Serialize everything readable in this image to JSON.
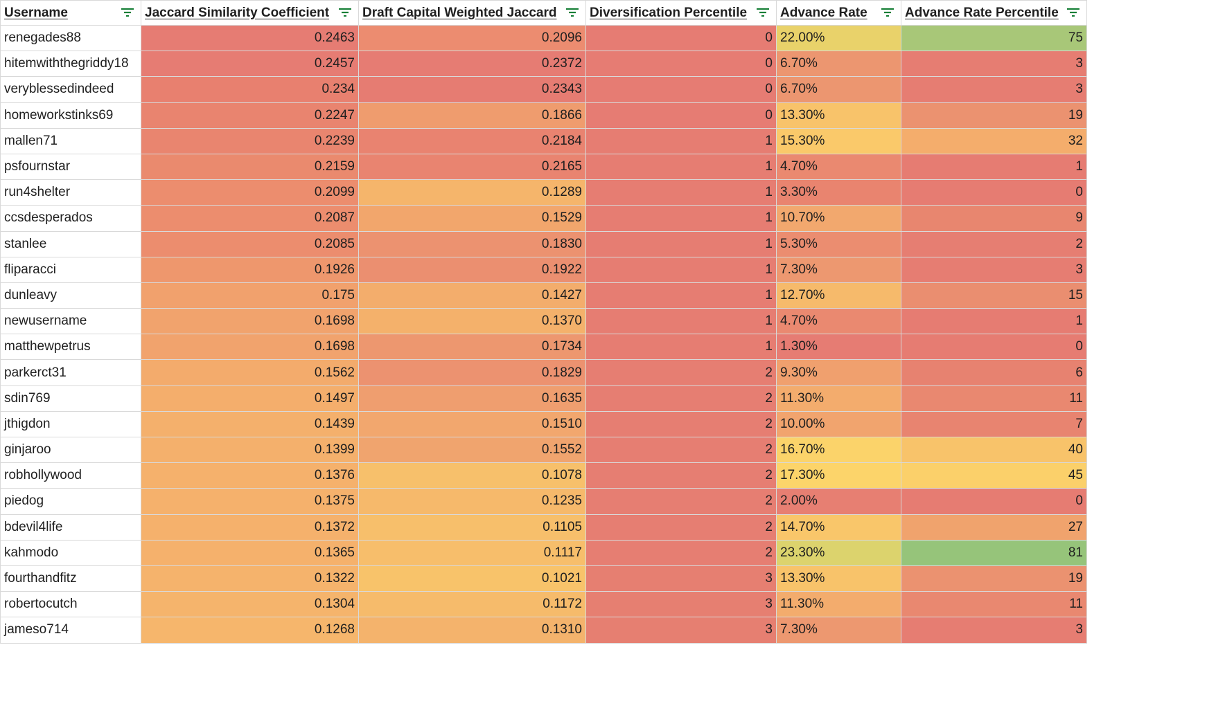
{
  "headers": [
    {
      "label": "Username"
    },
    {
      "label": "Jaccard Similarity Coefficient"
    },
    {
      "label": "Draft Capital Weighted Jaccard"
    },
    {
      "label": "Diversification Percentile"
    },
    {
      "label": "Advance Rate"
    },
    {
      "label": "Advance Rate Percentile"
    }
  ],
  "filter_icon": {
    "name": "filter-icon",
    "color": "#188038"
  },
  "rows": [
    {
      "username": "renegades88",
      "jaccard": "0.2463",
      "weighted": "0.2096",
      "div_pct": "0",
      "adv_rate": "22.00%",
      "adv_pct": "75",
      "colors": [
        "#e67c73",
        "#ec8c70",
        "#e67c73",
        "#e9d26a",
        "#a8c778"
      ]
    },
    {
      "username": "hitemwiththegriddy18",
      "jaccard": "0.2457",
      "weighted": "0.2372",
      "div_pct": "0",
      "adv_rate": "6.70%",
      "adv_pct": "3",
      "colors": [
        "#e67c73",
        "#e67c73",
        "#e67c73",
        "#ec9670",
        "#e67d72"
      ]
    },
    {
      "username": "veryblessedindeed",
      "jaccard": "0.234",
      "weighted": "0.2343",
      "div_pct": "0",
      "adv_rate": "6.70%",
      "adv_pct": "3",
      "colors": [
        "#e8806f",
        "#e67c72",
        "#e67c73",
        "#ec9670",
        "#e67d72"
      ]
    },
    {
      "username": "homeworkstinks69",
      "jaccard": "0.2247",
      "weighted": "0.1866",
      "div_pct": "0",
      "adv_rate": "13.30%",
      "adv_pct": "19",
      "colors": [
        "#e9846f",
        "#ef9c6e",
        "#e67c73",
        "#f8c36a",
        "#eb9270"
      ]
    },
    {
      "username": "mallen71",
      "jaccard": "0.2239",
      "weighted": "0.2184",
      "div_pct": "1",
      "adv_rate": "15.30%",
      "adv_pct": "32",
      "colors": [
        "#e9856f",
        "#e98370",
        "#e67d72",
        "#fac96a",
        "#f4ad6c"
      ]
    },
    {
      "username": "psfournstar",
      "jaccard": "0.2159",
      "weighted": "0.2165",
      "div_pct": "1",
      "adv_rate": "4.70%",
      "adv_pct": "1",
      "colors": [
        "#ea8a6e",
        "#e98470",
        "#e67d72",
        "#ea8970",
        "#e67c72"
      ]
    },
    {
      "username": "run4shelter",
      "jaccard": "0.2099",
      "weighted": "0.1289",
      "div_pct": "1",
      "adv_rate": "3.30%",
      "adv_pct": "0",
      "colors": [
        "#ec8d6e",
        "#f5b56b",
        "#e67d72",
        "#e9846f",
        "#e67c72"
      ]
    },
    {
      "username": "ccsdesperados",
      "jaccard": "0.2087",
      "weighted": "0.1529",
      "div_pct": "1",
      "adv_rate": "10.70%",
      "adv_pct": "9",
      "colors": [
        "#ec8d6e",
        "#f2a66c",
        "#e67d72",
        "#f2a86e",
        "#e8866f"
      ]
    },
    {
      "username": "stanlee",
      "jaccard": "0.2085",
      "weighted": "0.1830",
      "div_pct": "1",
      "adv_rate": "5.30%",
      "adv_pct": "2",
      "colors": [
        "#ec8d6e",
        "#ec9270",
        "#e67d72",
        "#eb8d70",
        "#e67e72"
      ]
    },
    {
      "username": "fliparacci",
      "jaccard": "0.1926",
      "weighted": "0.1922",
      "div_pct": "1",
      "adv_rate": "7.30%",
      "adv_pct": "3",
      "colors": [
        "#ee976d",
        "#eb8f70",
        "#e67d72",
        "#ed9870",
        "#e67d72"
      ]
    },
    {
      "username": "dunleavy",
      "jaccard": "0.175",
      "weighted": "0.1427",
      "div_pct": "1",
      "adv_rate": "12.70%",
      "adv_pct": "15",
      "colors": [
        "#f1a16d",
        "#f3ad6c",
        "#e67d72",
        "#f6ba6b",
        "#ea8e70"
      ]
    },
    {
      "username": "newusername",
      "jaccard": "0.1698",
      "weighted": "0.1370",
      "div_pct": "1",
      "adv_rate": "4.70%",
      "adv_pct": "1",
      "colors": [
        "#f1a36d",
        "#f4b16b",
        "#e67d72",
        "#ea8970",
        "#e67c72"
      ]
    },
    {
      "username": "matthewpetrus",
      "jaccard": "0.1698",
      "weighted": "0.1734",
      "div_pct": "1",
      "adv_rate": "1.30%",
      "adv_pct": "0",
      "colors": [
        "#f1a36d",
        "#ed976f",
        "#e67d72",
        "#e67c73",
        "#e67c72"
      ]
    },
    {
      "username": "parkerct31",
      "jaccard": "0.1562",
      "weighted": "0.1829",
      "div_pct": "2",
      "adv_rate": "9.30%",
      "adv_pct": "6",
      "colors": [
        "#f3ab6c",
        "#ec9270",
        "#e67e72",
        "#f0a06e",
        "#e78270"
      ]
    },
    {
      "username": "sdin769",
      "jaccard": "0.1497",
      "weighted": "0.1635",
      "div_pct": "2",
      "adv_rate": "11.30%",
      "adv_pct": "11",
      "colors": [
        "#f4ae6c",
        "#ef9e6f",
        "#e67e72",
        "#f3ac6d",
        "#e98870"
      ]
    },
    {
      "username": "jthigdon",
      "jaccard": "0.1439",
      "weighted": "0.1510",
      "div_pct": "2",
      "adv_rate": "10.00%",
      "adv_pct": "7",
      "colors": [
        "#f4b06c",
        "#f2a76e",
        "#e67e72",
        "#f1a46e",
        "#e88470"
      ]
    },
    {
      "username": "ginjaroo",
      "jaccard": "0.1399",
      "weighted": "0.1552",
      "div_pct": "2",
      "adv_rate": "16.70%",
      "adv_pct": "40",
      "colors": [
        "#f4b06c",
        "#f0a46e",
        "#e67e72",
        "#fbd36a",
        "#f8c36a"
      ]
    },
    {
      "username": "robhollywood",
      "jaccard": "0.1376",
      "weighted": "0.1078",
      "div_pct": "2",
      "adv_rate": "17.30%",
      "adv_pct": "45",
      "colors": [
        "#f5b16c",
        "#f7c06b",
        "#e67e72",
        "#fcd46a",
        "#fbd06a"
      ]
    },
    {
      "username": "piedog",
      "jaccard": "0.1375",
      "weighted": "0.1235",
      "div_pct": "2",
      "adv_rate": "2.00%",
      "adv_pct": "0",
      "colors": [
        "#f5b16c",
        "#f6b96b",
        "#e67e72",
        "#e77f72",
        "#e67c72"
      ]
    },
    {
      "username": "bdevil4life",
      "jaccard": "0.1372",
      "weighted": "0.1105",
      "div_pct": "2",
      "adv_rate": "14.70%",
      "adv_pct": "27",
      "colors": [
        "#f5b16c",
        "#f7bf6b",
        "#e67e72",
        "#f9c66a",
        "#f0a36d"
      ]
    },
    {
      "username": "kahmodo",
      "jaccard": "0.1365",
      "weighted": "0.1117",
      "div_pct": "2",
      "adv_rate": "23.30%",
      "adv_pct": "81",
      "colors": [
        "#f5b16c",
        "#f7be6b",
        "#e67e72",
        "#dcd36d",
        "#96c47a"
      ]
    },
    {
      "username": "fourthandfitz",
      "jaccard": "0.1322",
      "weighted": "0.1021",
      "div_pct": "3",
      "adv_rate": "13.30%",
      "adv_pct": "19",
      "colors": [
        "#f5b36c",
        "#f8c36a",
        "#e67f71",
        "#f8c36a",
        "#eb9270"
      ]
    },
    {
      "username": "robertocutch",
      "jaccard": "0.1304",
      "weighted": "0.1172",
      "div_pct": "3",
      "adv_rate": "11.30%",
      "adv_pct": "11",
      "colors": [
        "#f5b46c",
        "#f6bb6b",
        "#e67f71",
        "#f3ac6d",
        "#e98870"
      ]
    },
    {
      "username": "jameso714",
      "jaccard": "0.1268",
      "weighted": "0.1310",
      "div_pct": "3",
      "adv_rate": "7.30%",
      "adv_pct": "3",
      "colors": [
        "#f6b66c",
        "#f4b36c",
        "#e67f71",
        "#ed9870",
        "#e67d72"
      ]
    }
  ]
}
